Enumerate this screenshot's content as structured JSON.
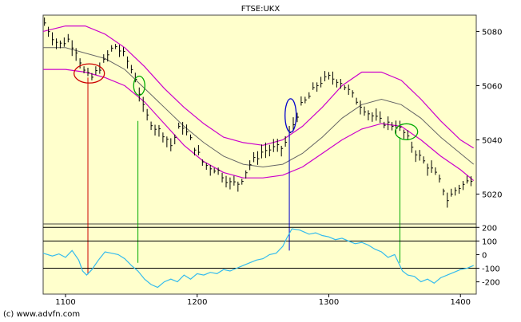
{
  "chart_data": [
    {
      "type": "line",
      "title": "FTSE:UKX",
      "xlim": [
        1083,
        1412
      ],
      "ylim": [
        5009,
        5086
      ],
      "x_ticks": [
        1100,
        1200,
        1300,
        1400
      ],
      "x_tick_labels": [
        "1100",
        "1200",
        "1300",
        "1400"
      ],
      "y_ticks": [
        5020,
        5040,
        5060,
        5080
      ],
      "y_tick_labels": [
        "5020",
        "5040",
        "5060",
        "5080"
      ],
      "background": "#ffffcc",
      "grid": false,
      "colors": {
        "price": "#000000",
        "upper_band": "#cc00cc",
        "lower_band": "#cc00cc",
        "middle_band": "#666666"
      },
      "price_anchors": [
        [
          1083,
          5084
        ],
        [
          1090,
          5078
        ],
        [
          1095,
          5075
        ],
        [
          1102,
          5077
        ],
        [
          1108,
          5073
        ],
        [
          1115,
          5064
        ],
        [
          1120,
          5063
        ],
        [
          1128,
          5068
        ],
        [
          1137,
          5075
        ],
        [
          1145,
          5071
        ],
        [
          1153,
          5063
        ],
        [
          1160,
          5050
        ],
        [
          1167,
          5045
        ],
        [
          1175,
          5042
        ],
        [
          1180,
          5038
        ],
        [
          1188,
          5046
        ],
        [
          1195,
          5040
        ],
        [
          1205,
          5031
        ],
        [
          1215,
          5029
        ],
        [
          1225,
          5024
        ],
        [
          1232,
          5024
        ],
        [
          1240,
          5031
        ],
        [
          1250,
          5036
        ],
        [
          1260,
          5037
        ],
        [
          1265,
          5037
        ],
        [
          1270,
          5042
        ],
        [
          1278,
          5052
        ],
        [
          1285,
          5056
        ],
        [
          1292,
          5061
        ],
        [
          1300,
          5063
        ],
        [
          1308,
          5062
        ],
        [
          1315,
          5058
        ],
        [
          1322,
          5054
        ],
        [
          1330,
          5050
        ],
        [
          1338,
          5047
        ],
        [
          1345,
          5046
        ],
        [
          1352,
          5045
        ],
        [
          1358,
          5042
        ],
        [
          1365,
          5036
        ],
        [
          1372,
          5032
        ],
        [
          1380,
          5028
        ],
        [
          1386,
          5023
        ],
        [
          1390,
          5018
        ],
        [
          1397,
          5022
        ],
        [
          1404,
          5024
        ],
        [
          1410,
          5027
        ]
      ],
      "middle_band": [
        [
          1083,
          5074
        ],
        [
          1100,
          5074
        ],
        [
          1115,
          5072
        ],
        [
          1130,
          5070
        ],
        [
          1145,
          5066
        ],
        [
          1160,
          5059
        ],
        [
          1175,
          5052
        ],
        [
          1190,
          5045
        ],
        [
          1205,
          5039
        ],
        [
          1220,
          5034
        ],
        [
          1235,
          5031
        ],
        [
          1250,
          5030
        ],
        [
          1265,
          5031
        ],
        [
          1280,
          5035
        ],
        [
          1295,
          5041
        ],
        [
          1310,
          5048
        ],
        [
          1325,
          5053
        ],
        [
          1340,
          5055
        ],
        [
          1355,
          5053
        ],
        [
          1370,
          5048
        ],
        [
          1385,
          5041
        ],
        [
          1400,
          5035
        ],
        [
          1410,
          5031
        ]
      ],
      "upper_band": [
        [
          1083,
          5080
        ],
        [
          1100,
          5082
        ],
        [
          1115,
          5082
        ],
        [
          1130,
          5079
        ],
        [
          1145,
          5074
        ],
        [
          1160,
          5067
        ],
        [
          1175,
          5059
        ],
        [
          1190,
          5052
        ],
        [
          1205,
          5046
        ],
        [
          1220,
          5041
        ],
        [
          1235,
          5039
        ],
        [
          1250,
          5038
        ],
        [
          1265,
          5040
        ],
        [
          1280,
          5045
        ],
        [
          1295,
          5052
        ],
        [
          1310,
          5060
        ],
        [
          1325,
          5065
        ],
        [
          1340,
          5065
        ],
        [
          1355,
          5062
        ],
        [
          1370,
          5055
        ],
        [
          1385,
          5047
        ],
        [
          1400,
          5040
        ],
        [
          1410,
          5037
        ]
      ],
      "lower_band": [
        [
          1083,
          5066
        ],
        [
          1100,
          5066
        ],
        [
          1115,
          5065
        ],
        [
          1130,
          5063
        ],
        [
          1145,
          5060
        ],
        [
          1160,
          5054
        ],
        [
          1175,
          5046
        ],
        [
          1190,
          5038
        ],
        [
          1205,
          5032
        ],
        [
          1220,
          5028
        ],
        [
          1235,
          5026
        ],
        [
          1250,
          5026
        ],
        [
          1265,
          5027
        ],
        [
          1280,
          5030
        ],
        [
          1295,
          5035
        ],
        [
          1310,
          5040
        ],
        [
          1325,
          5044
        ],
        [
          1340,
          5046
        ],
        [
          1355,
          5045
        ],
        [
          1370,
          5040
        ],
        [
          1385,
          5034
        ],
        [
          1400,
          5029
        ],
        [
          1410,
          5025
        ]
      ],
      "annotations": [
        {
          "shape": "ellipse",
          "color": "#cc0000",
          "x": 1118,
          "y": 5064.5
        },
        {
          "shape": "ellipse",
          "color": "#00aa00",
          "x": 1156,
          "y": 5060
        },
        {
          "shape": "ellipse",
          "color": "#0000cc",
          "x": 1271,
          "y": 5049
        },
        {
          "shape": "ellipse",
          "color": "#00aa00",
          "x": 1359,
          "y": 5043
        }
      ],
      "signal_lines": [
        {
          "x": 1117,
          "color": "#cc0000"
        },
        {
          "x": 1155,
          "color": "#00aa00"
        },
        {
          "x": 1270,
          "color": "#0000cc"
        },
        {
          "x": 1354,
          "color": "#00aa00"
        }
      ]
    },
    {
      "type": "line",
      "xlim": [
        1083,
        1412
      ],
      "ylim": [
        -290,
        225
      ],
      "y_ticks": [
        200,
        100,
        0,
        -100,
        -200
      ],
      "y_tick_labels": [
        "200",
        "100",
        "0",
        "-100",
        "-200"
      ],
      "reference_lines": [
        200,
        100,
        -100
      ],
      "colors": {
        "oscillator": "#33bbee"
      },
      "oscillator": [
        [
          1083,
          10
        ],
        [
          1090,
          -10
        ],
        [
          1095,
          5
        ],
        [
          1100,
          -20
        ],
        [
          1105,
          30
        ],
        [
          1110,
          -40
        ],
        [
          1113,
          -120
        ],
        [
          1116,
          -150
        ],
        [
          1120,
          -110
        ],
        [
          1125,
          -40
        ],
        [
          1130,
          20
        ],
        [
          1135,
          10
        ],
        [
          1140,
          0
        ],
        [
          1145,
          -30
        ],
        [
          1150,
          -80
        ],
        [
          1155,
          -120
        ],
        [
          1160,
          -180
        ],
        [
          1165,
          -220
        ],
        [
          1170,
          -240
        ],
        [
          1175,
          -200
        ],
        [
          1180,
          -180
        ],
        [
          1185,
          -200
        ],
        [
          1190,
          -150
        ],
        [
          1195,
          -180
        ],
        [
          1200,
          -140
        ],
        [
          1205,
          -150
        ],
        [
          1210,
          -130
        ],
        [
          1215,
          -140
        ],
        [
          1220,
          -110
        ],
        [
          1225,
          -120
        ],
        [
          1230,
          -100
        ],
        [
          1235,
          -80
        ],
        [
          1240,
          -60
        ],
        [
          1245,
          -40
        ],
        [
          1250,
          -30
        ],
        [
          1255,
          0
        ],
        [
          1260,
          10
        ],
        [
          1265,
          60
        ],
        [
          1268,
          120
        ],
        [
          1272,
          190
        ],
        [
          1278,
          180
        ],
        [
          1285,
          150
        ],
        [
          1290,
          160
        ],
        [
          1295,
          140
        ],
        [
          1300,
          130
        ],
        [
          1305,
          110
        ],
        [
          1310,
          120
        ],
        [
          1315,
          100
        ],
        [
          1320,
          80
        ],
        [
          1325,
          90
        ],
        [
          1330,
          70
        ],
        [
          1335,
          40
        ],
        [
          1340,
          20
        ],
        [
          1345,
          -20
        ],
        [
          1350,
          0
        ],
        [
          1353,
          -60
        ],
        [
          1356,
          -120
        ],
        [
          1360,
          -150
        ],
        [
          1365,
          -160
        ],
        [
          1370,
          -200
        ],
        [
          1375,
          -180
        ],
        [
          1380,
          -210
        ],
        [
          1385,
          -170
        ],
        [
          1390,
          -150
        ],
        [
          1395,
          -130
        ],
        [
          1400,
          -110
        ],
        [
          1405,
          -100
        ],
        [
          1410,
          -80
        ]
      ]
    }
  ],
  "footer": {
    "copyright": "(c) www.advfn.com"
  }
}
